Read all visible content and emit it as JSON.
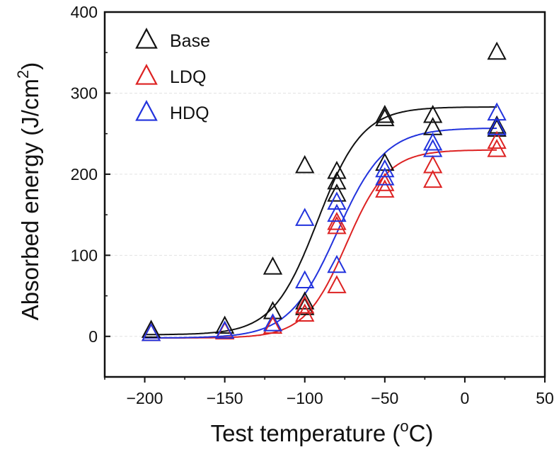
{
  "chart_data": {
    "type": "scatter",
    "title": "",
    "xlabel": "Test temperature (",
    "xlabel_sup": "o",
    "xlabel_tail": "C)",
    "ylabel": "Absorbed energy (J/cm",
    "ylabel_sup": "2",
    "ylabel_tail": ")",
    "xlim": [
      -225,
      50
    ],
    "ylim": [
      -50,
      400
    ],
    "xticks": [
      -200,
      -150,
      -100,
      -50,
      0,
      50
    ],
    "yticks": [
      0,
      100,
      200,
      300,
      400
    ],
    "xtick_labels": [
      "−200",
      "−150",
      "−100",
      "−50",
      "0",
      "50"
    ],
    "ytick_labels": [
      "0",
      "100",
      "200",
      "300",
      "400"
    ],
    "legend_position": "top-left",
    "grid": true,
    "series": [
      {
        "name": "Base",
        "color": "#111111",
        "marker": "open-triangle",
        "points": [
          [
            -196,
            7
          ],
          [
            -150,
            12
          ],
          [
            -120,
            30
          ],
          [
            -120,
            85
          ],
          [
            -100,
            35
          ],
          [
            -100,
            42
          ],
          [
            -100,
            210
          ],
          [
            -80,
            175
          ],
          [
            -80,
            190
          ],
          [
            -80,
            203
          ],
          [
            -50,
            213
          ],
          [
            -50,
            268
          ],
          [
            -50,
            272
          ],
          [
            -20,
            257
          ],
          [
            -20,
            272
          ],
          [
            20,
            255
          ],
          [
            20,
            259
          ],
          [
            20,
            350
          ]
        ],
        "fit": {
          "A1": 2,
          "A2": 283,
          "x0": -92,
          "dx": 14
        }
      },
      {
        "name": "LDQ",
        "color": "#dd2222",
        "marker": "open-triangle",
        "points": [
          [
            -196,
            3
          ],
          [
            -150,
            5
          ],
          [
            -120,
            12
          ],
          [
            -100,
            27
          ],
          [
            -100,
            37
          ],
          [
            -80,
            62
          ],
          [
            -80,
            135
          ],
          [
            -80,
            140
          ],
          [
            -50,
            180
          ],
          [
            -50,
            188
          ],
          [
            -20,
            192
          ],
          [
            -20,
            210
          ],
          [
            20,
            230
          ],
          [
            20,
            240
          ]
        ],
        "fit": {
          "A1": -2,
          "A2": 230,
          "x0": -74,
          "dx": 13
        }
      },
      {
        "name": "HDQ",
        "color": "#2233dd",
        "marker": "open-triangle",
        "points": [
          [
            -196,
            3
          ],
          [
            -150,
            6
          ],
          [
            -120,
            15
          ],
          [
            -100,
            68
          ],
          [
            -100,
            145
          ],
          [
            -80,
            87
          ],
          [
            -80,
            150
          ],
          [
            -80,
            165
          ],
          [
            -50,
            195
          ],
          [
            -50,
            205
          ],
          [
            -20,
            230
          ],
          [
            -20,
            238
          ],
          [
            20,
            257
          ],
          [
            20,
            275
          ]
        ],
        "fit": {
          "A1": -2,
          "A2": 257,
          "x0": -80,
          "dx": 15
        }
      }
    ]
  }
}
